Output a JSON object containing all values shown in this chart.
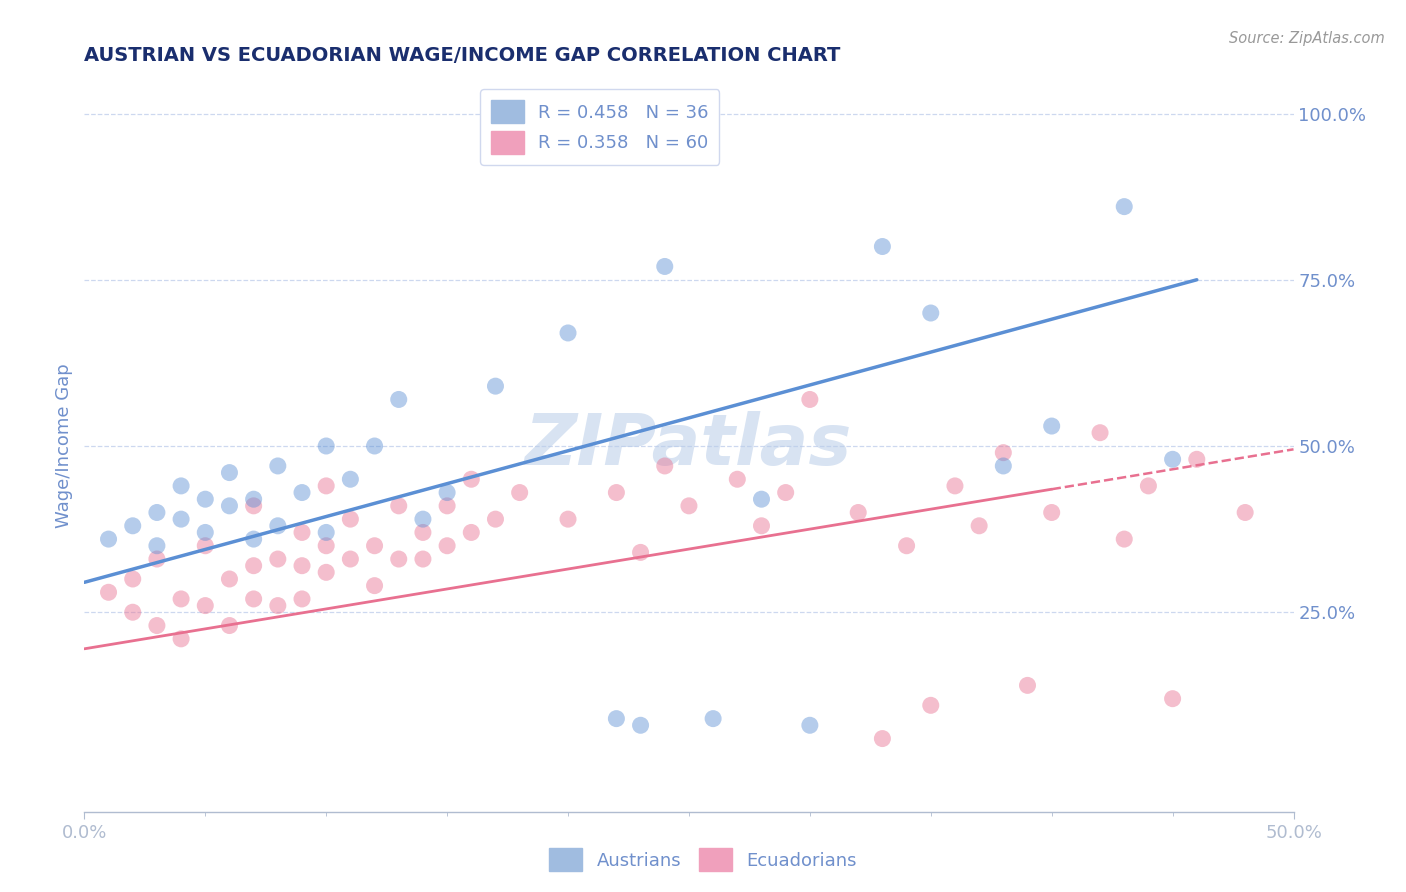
{
  "title": "AUSTRIAN VS ECUADORIAN WAGE/INCOME GAP CORRELATION CHART",
  "source": "Source: ZipAtlas.com",
  "watermark": "ZIPatlas",
  "xlim": [
    0.0,
    0.5
  ],
  "ylim": [
    -0.05,
    1.05
  ],
  "ytick_positions": [
    0.25,
    0.5,
    0.75,
    1.0
  ],
  "xtick_positions": [
    0.0,
    0.5
  ],
  "xlabel_ticks": [
    "0.0%",
    "50.0%"
  ],
  "blue_color": "#5b8fd4",
  "pink_color": "#e87090",
  "title_color": "#1a2e6e",
  "axis_color": "#7090cc",
  "grid_color": "#c8d4ee",
  "watermark_color": "#b8cce8",
  "legend_blue_label": "R = 0.458   N = 36",
  "legend_pink_label": "R = 0.358   N = 60",
  "legend_blue_patch": "#a0bce0",
  "legend_pink_patch": "#f0a0bc",
  "blue_scatter": [
    [
      0.01,
      0.36
    ],
    [
      0.02,
      0.38
    ],
    [
      0.03,
      0.4
    ],
    [
      0.03,
      0.35
    ],
    [
      0.04,
      0.39
    ],
    [
      0.04,
      0.44
    ],
    [
      0.05,
      0.37
    ],
    [
      0.05,
      0.42
    ],
    [
      0.06,
      0.41
    ],
    [
      0.06,
      0.46
    ],
    [
      0.07,
      0.42
    ],
    [
      0.07,
      0.36
    ],
    [
      0.08,
      0.47
    ],
    [
      0.08,
      0.38
    ],
    [
      0.09,
      0.43
    ],
    [
      0.1,
      0.37
    ],
    [
      0.1,
      0.5
    ],
    [
      0.11,
      0.45
    ],
    [
      0.12,
      0.5
    ],
    [
      0.13,
      0.57
    ],
    [
      0.14,
      0.39
    ],
    [
      0.15,
      0.43
    ],
    [
      0.17,
      0.59
    ],
    [
      0.2,
      0.67
    ],
    [
      0.22,
      0.09
    ],
    [
      0.23,
      0.08
    ],
    [
      0.24,
      0.77
    ],
    [
      0.26,
      0.09
    ],
    [
      0.28,
      0.42
    ],
    [
      0.3,
      0.08
    ],
    [
      0.33,
      0.8
    ],
    [
      0.35,
      0.7
    ],
    [
      0.38,
      0.47
    ],
    [
      0.4,
      0.53
    ],
    [
      0.43,
      0.86
    ],
    [
      0.45,
      0.48
    ]
  ],
  "pink_scatter": [
    [
      0.01,
      0.28
    ],
    [
      0.02,
      0.3
    ],
    [
      0.02,
      0.25
    ],
    [
      0.03,
      0.23
    ],
    [
      0.03,
      0.33
    ],
    [
      0.04,
      0.27
    ],
    [
      0.04,
      0.21
    ],
    [
      0.05,
      0.26
    ],
    [
      0.05,
      0.35
    ],
    [
      0.06,
      0.3
    ],
    [
      0.06,
      0.23
    ],
    [
      0.07,
      0.41
    ],
    [
      0.07,
      0.32
    ],
    [
      0.07,
      0.27
    ],
    [
      0.08,
      0.33
    ],
    [
      0.08,
      0.26
    ],
    [
      0.09,
      0.37
    ],
    [
      0.09,
      0.32
    ],
    [
      0.09,
      0.27
    ],
    [
      0.1,
      0.44
    ],
    [
      0.1,
      0.35
    ],
    [
      0.1,
      0.31
    ],
    [
      0.11,
      0.39
    ],
    [
      0.11,
      0.33
    ],
    [
      0.12,
      0.35
    ],
    [
      0.12,
      0.29
    ],
    [
      0.13,
      0.41
    ],
    [
      0.13,
      0.33
    ],
    [
      0.14,
      0.37
    ],
    [
      0.14,
      0.33
    ],
    [
      0.15,
      0.41
    ],
    [
      0.15,
      0.35
    ],
    [
      0.16,
      0.45
    ],
    [
      0.16,
      0.37
    ],
    [
      0.17,
      0.39
    ],
    [
      0.18,
      0.43
    ],
    [
      0.2,
      0.39
    ],
    [
      0.22,
      0.43
    ],
    [
      0.23,
      0.34
    ],
    [
      0.24,
      0.47
    ],
    [
      0.25,
      0.41
    ],
    [
      0.27,
      0.45
    ],
    [
      0.28,
      0.38
    ],
    [
      0.29,
      0.43
    ],
    [
      0.3,
      0.57
    ],
    [
      0.32,
      0.4
    ],
    [
      0.33,
      0.06
    ],
    [
      0.34,
      0.35
    ],
    [
      0.35,
      0.11
    ],
    [
      0.36,
      0.44
    ],
    [
      0.37,
      0.38
    ],
    [
      0.38,
      0.49
    ],
    [
      0.39,
      0.14
    ],
    [
      0.4,
      0.4
    ],
    [
      0.42,
      0.52
    ],
    [
      0.43,
      0.36
    ],
    [
      0.44,
      0.44
    ],
    [
      0.45,
      0.12
    ],
    [
      0.46,
      0.48
    ],
    [
      0.48,
      0.4
    ]
  ],
  "blue_line": {
    "x0": 0.0,
    "y0": 0.295,
    "x1": 0.46,
    "y1": 0.75
  },
  "blue_line_solid_end": 0.46,
  "pink_line_solid": {
    "x0": 0.0,
    "y0": 0.195,
    "x1": 0.4,
    "y1": 0.435
  },
  "pink_line_dashed": {
    "x0": 0.4,
    "y0": 0.435,
    "x1": 0.5,
    "y1": 0.495
  }
}
